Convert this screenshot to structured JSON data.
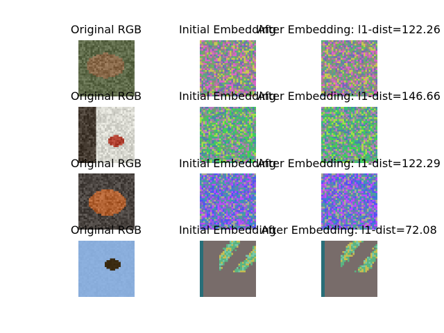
{
  "grid": {
    "rows": [
      {
        "original_title": "Original RGB",
        "initial_title": "Initial Embedding",
        "after_title": "After Embedding: l1-dist=122.26",
        "original_image": "toad-on-ground-photo",
        "initial_noise": "multicolor-noise-mid",
        "after_noise": "multicolor-noise-mid",
        "colors": {
          "orig_bg": "#5f6b4a",
          "orig_subject": "#8a6a4a",
          "noise_base": "#8c8a7a"
        }
      },
      {
        "original_title": "Original RGB",
        "initial_title": "Initial Embedding",
        "after_title": "After Embedding: l1-dist=146.66",
        "original_image": "small-red-bird-on-branch-photo",
        "initial_noise": "green-purple-noise",
        "after_noise": "green-purple-noise",
        "colors": {
          "orig_bg": "#d8d8d0",
          "orig_subject": "#b04030",
          "noise_base": "#6aa070"
        }
      },
      {
        "original_title": "Original RGB",
        "initial_title": "Initial Embedding",
        "after_title": "After Embedding: l1-dist=122.29",
        "original_image": "brown-frog-photo",
        "initial_noise": "blue-purple-noise",
        "after_noise": "blue-purple-noise",
        "colors": {
          "orig_bg": "#4a4440",
          "orig_subject": "#b06030",
          "noise_base": "#7070b8"
        }
      },
      {
        "original_title": "Original RGB",
        "initial_title": "Initial Embedding",
        "after_title": "After Embedding: l1-dist=72.08",
        "original_image": "bird-flying-in-blue-sky-photo",
        "initial_noise": "flat-gray-with-green-blobs",
        "after_noise": "flat-gray-with-green-blobs",
        "colors": {
          "orig_bg": "#8aaedc",
          "orig_subject": "#3a2a10",
          "noise_base": "#786c6a"
        }
      }
    ]
  }
}
